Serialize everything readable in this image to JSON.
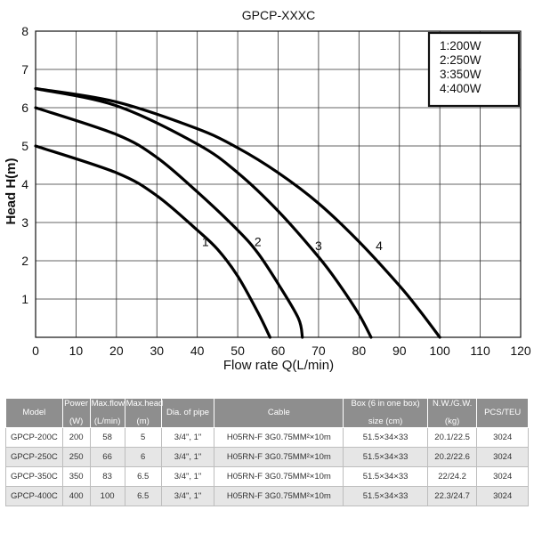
{
  "chart_data": {
    "type": "line",
    "title": "GPCP-XXXC",
    "xlabel": "Flow rate Q(L/min)",
    "ylabel": "Head H(m)",
    "xlim": [
      0,
      120
    ],
    "ylim": [
      0,
      8
    ],
    "xticks": [
      "0",
      "10",
      "20",
      "30",
      "40",
      "50",
      "60",
      "70",
      "80",
      "90",
      "100",
      "110",
      "120"
    ],
    "yticks": [
      "1",
      "2",
      "3",
      "4",
      "5",
      "6",
      "7",
      "8"
    ],
    "grid": true,
    "legend": {
      "position": "top-right",
      "entries": [
        "1:200W",
        "2:250W",
        "3:350W",
        "4:400W"
      ]
    },
    "series": [
      {
        "label": "1",
        "label_at": [
          42,
          2.5
        ],
        "points": [
          [
            0,
            5.0
          ],
          [
            20,
            4.3
          ],
          [
            30,
            3.7
          ],
          [
            40,
            2.8
          ],
          [
            45,
            2.3
          ],
          [
            50,
            1.6
          ],
          [
            55,
            0.65
          ],
          [
            58,
            0
          ]
        ]
      },
      {
        "label": "2",
        "label_at": [
          55,
          2.5
        ],
        "points": [
          [
            0,
            6.0
          ],
          [
            20,
            5.3
          ],
          [
            30,
            4.7
          ],
          [
            40,
            3.8
          ],
          [
            50,
            2.8
          ],
          [
            55,
            2.2
          ],
          [
            60,
            1.4
          ],
          [
            65,
            0.5
          ],
          [
            66,
            0
          ]
        ]
      },
      {
        "label": "3",
        "label_at": [
          70,
          2.4
        ],
        "points": [
          [
            0,
            6.5
          ],
          [
            20,
            6.05
          ],
          [
            40,
            5.05
          ],
          [
            50,
            4.3
          ],
          [
            60,
            3.3
          ],
          [
            70,
            2.1
          ],
          [
            75,
            1.4
          ],
          [
            80,
            0.6
          ],
          [
            83,
            0
          ]
        ]
      },
      {
        "label": "4",
        "label_at": [
          85,
          2.4
        ],
        "points": [
          [
            0,
            6.5
          ],
          [
            20,
            6.15
          ],
          [
            40,
            5.45
          ],
          [
            50,
            4.95
          ],
          [
            60,
            4.3
          ],
          [
            70,
            3.5
          ],
          [
            80,
            2.5
          ],
          [
            90,
            1.35
          ],
          [
            95,
            0.7
          ],
          [
            100,
            0
          ]
        ]
      }
    ]
  },
  "table": {
    "headers": [
      [
        "Model"
      ],
      [
        "Power",
        "(W)"
      ],
      [
        "Max.flow",
        "(L/min)"
      ],
      [
        "Max.head",
        "(m)"
      ],
      [
        "Dia. of pipe"
      ],
      [
        "Cable"
      ],
      [
        "Box (6 in one box)",
        "size (cm)"
      ],
      [
        "N.W./G.W.",
        "(kg)"
      ],
      [
        "PCS/TEU"
      ]
    ],
    "rows": [
      [
        "GPCP-200C",
        "200",
        "58",
        "5",
        "3/4\", 1\"",
        "H05RN-F 3G0.75MM²×10m",
        "51.5×34×33",
        "20.1/22.5",
        "3024"
      ],
      [
        "GPCP-250C",
        "250",
        "66",
        "6",
        "3/4\", 1\"",
        "H05RN-F 3G0.75MM²×10m",
        "51.5×34×33",
        "20.2/22.6",
        "3024"
      ],
      [
        "GPCP-350C",
        "350",
        "83",
        "6.5",
        "3/4\", 1\"",
        "H05RN-F 3G0.75MM²×10m",
        "51.5×34×33",
        "22/24.2",
        "3024"
      ],
      [
        "GPCP-400C",
        "400",
        "100",
        "6.5",
        "3/4\", 1\"",
        "H05RN-F 3G0.75MM²×10m",
        "51.5×34×33",
        "22.3/24.7",
        "3024"
      ]
    ]
  }
}
